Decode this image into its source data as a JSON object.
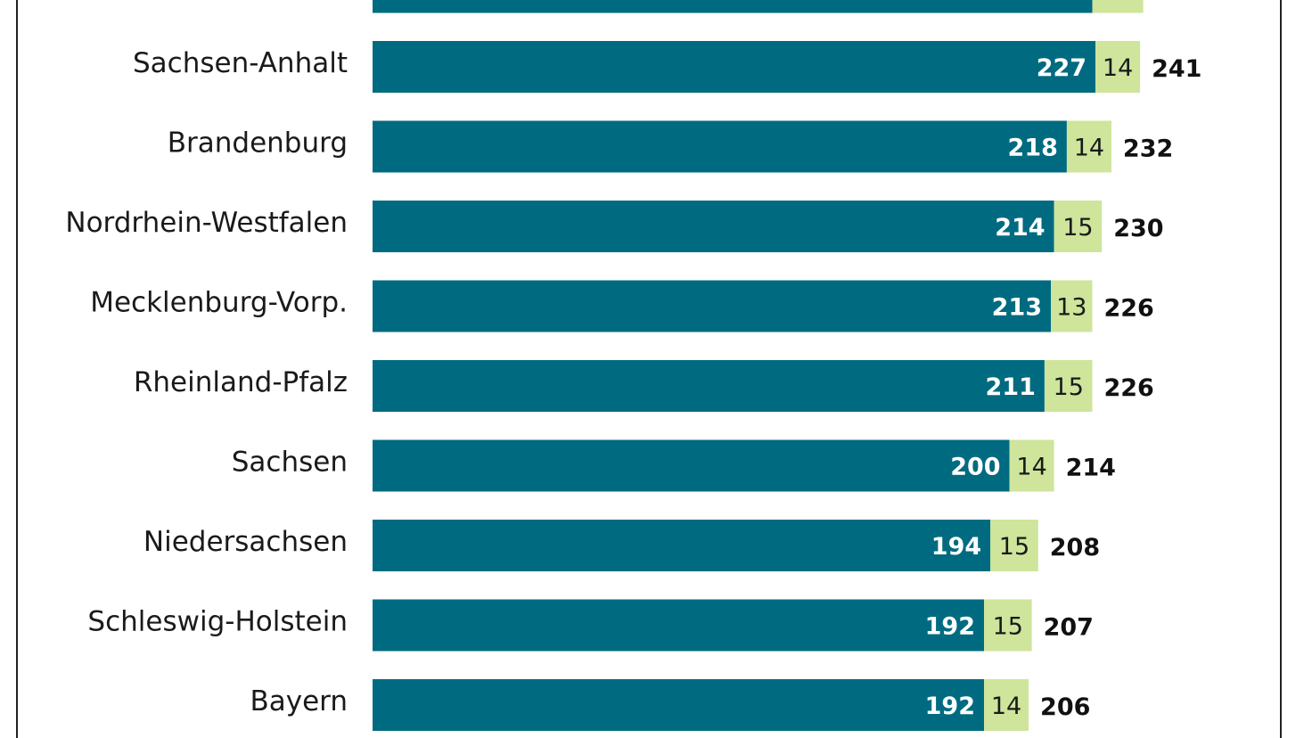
{
  "chart_data": {
    "type": "bar",
    "orientation": "horizontal",
    "stacked": true,
    "colors": {
      "series1": "#006b80",
      "series2": "#cee59b",
      "total_label": "#111111",
      "category_label": "#1a1a1a"
    },
    "partial_top_bar": {
      "values": [
        226,
        16
      ]
    },
    "categories": [
      "Sachsen-Anhalt",
      "Brandenburg",
      "Nordrhein-Westfalen",
      "Mecklenburg-Vorp.",
      "Rheinland-Pfalz",
      "Sachsen",
      "Niedersachsen",
      "Schleswig-Holstein",
      "Bayern"
    ],
    "series": [
      {
        "values": [
          227,
          218,
          214,
          213,
          211,
          200,
          194,
          192,
          192
        ]
      },
      {
        "values": [
          14,
          14,
          15,
          13,
          15,
          14,
          15,
          15,
          14
        ]
      }
    ],
    "totals": [
      241,
      232,
      230,
      226,
      226,
      214,
      208,
      207,
      206
    ],
    "grid": false,
    "xlim": [
      0,
      250
    ]
  }
}
